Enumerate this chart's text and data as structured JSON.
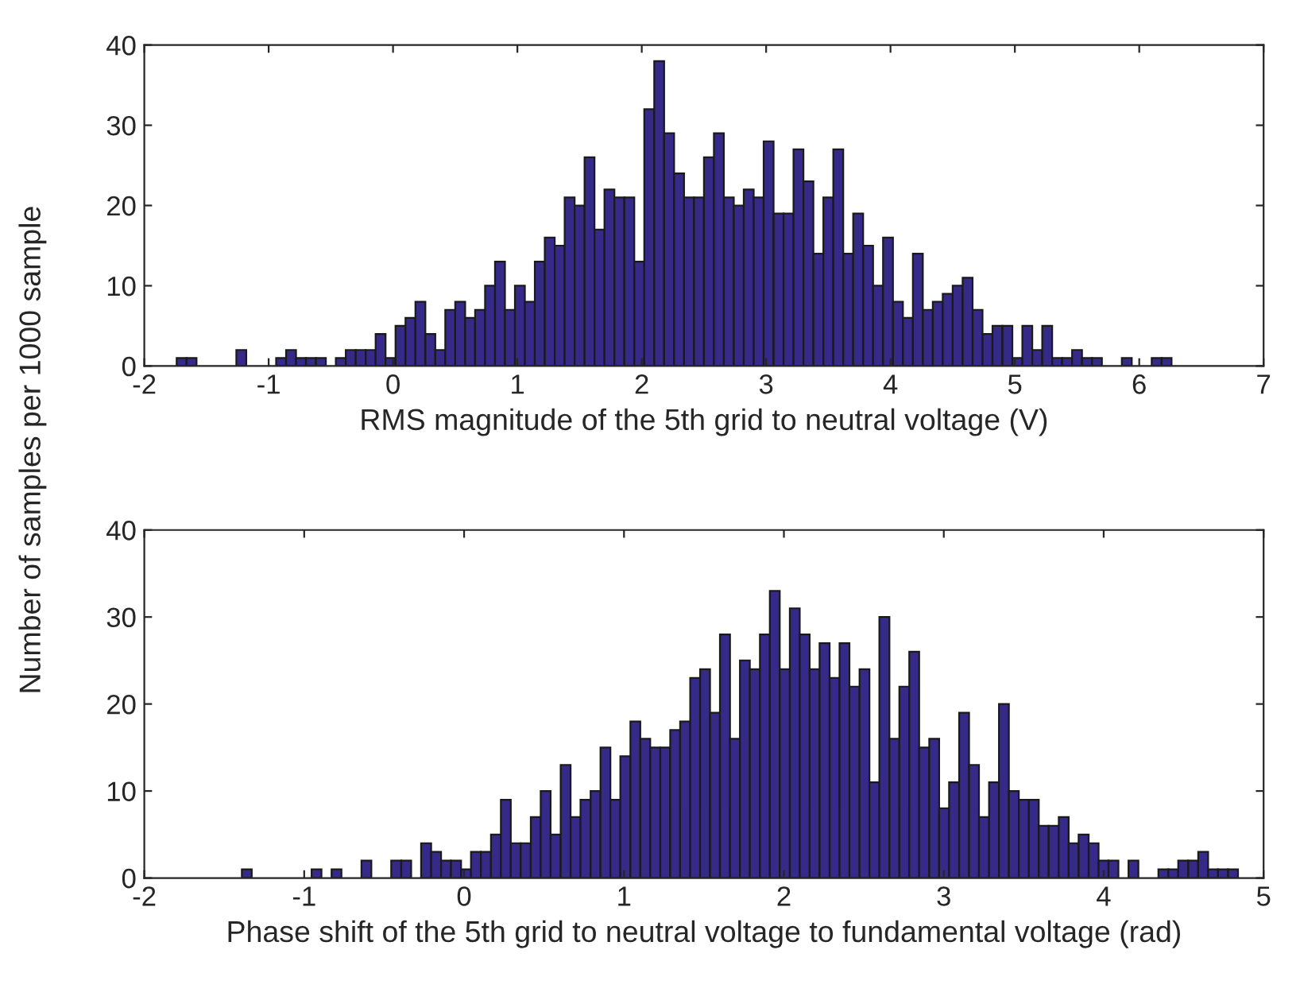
{
  "chart_data": [
    {
      "type": "histogram",
      "xlabel": "RMS magnitude of the 5th grid to neutral voltage (V)",
      "ylabel": "Number of samples per 1000 sample",
      "color": "#352a87",
      "bins": [
        -1.74,
        -1.66,
        -1.58,
        -1.5,
        -1.42,
        -1.34,
        -1.26,
        -1.18,
        -1.1,
        -1.02,
        -0.94,
        -0.86,
        -0.78,
        -0.7,
        -0.62,
        -0.54,
        -0.46,
        -0.38,
        -0.3,
        -0.22,
        -0.14,
        -0.06,
        0.02,
        0.1,
        0.18,
        0.26,
        0.34,
        0.42,
        0.5,
        0.58,
        0.66,
        0.74,
        0.82,
        0.9,
        0.98,
        1.06,
        1.14,
        1.22,
        1.3,
        1.38,
        1.46,
        1.54,
        1.62,
        1.7,
        1.78,
        1.86,
        1.94,
        2.02,
        2.1,
        2.18,
        2.26,
        2.34,
        2.42,
        2.5,
        2.58,
        2.66,
        2.74,
        2.82,
        2.9,
        2.98,
        3.06,
        3.14,
        3.22,
        3.3,
        3.38,
        3.46,
        3.54,
        3.62,
        3.7,
        3.78,
        3.86,
        3.94,
        4.02,
        4.1,
        4.18,
        4.26,
        4.34,
        4.42,
        4.5,
        4.58,
        4.66,
        4.74,
        4.82,
        4.9,
        4.98,
        5.06,
        5.14,
        5.22,
        5.3,
        5.38,
        5.46,
        5.54,
        5.62,
        5.7,
        5.78,
        5.86,
        5.94,
        6.02,
        6.1,
        6.18,
        6.26
      ],
      "values": [
        1,
        1,
        0,
        0,
        0,
        0,
        2,
        0,
        0,
        0,
        1,
        2,
        1,
        1,
        1,
        0,
        1,
        2,
        2,
        2,
        4,
        1,
        5,
        6,
        8,
        4,
        2,
        7,
        8,
        6,
        7,
        10,
        13,
        7,
        10,
        8,
        13,
        16,
        15,
        21,
        20,
        26,
        17,
        22,
        21,
        21,
        13,
        32,
        38,
        29,
        24,
        21,
        21,
        26,
        29,
        21,
        20,
        22,
        21,
        28,
        19,
        19,
        27,
        23,
        14,
        21,
        27,
        14,
        19,
        15,
        10,
        16,
        8,
        6,
        14,
        7,
        8,
        9,
        10,
        11,
        7,
        4,
        5,
        5,
        1,
        5,
        2,
        5,
        1,
        1,
        2,
        1,
        1,
        0,
        0,
        1,
        0,
        0,
        1,
        1
      ],
      "xlim": [
        -2,
        7
      ],
      "ylim": [
        0,
        40
      ],
      "xticks": [
        -2,
        -1,
        0,
        1,
        2,
        3,
        4,
        5,
        6,
        7
      ],
      "yticks": [
        0,
        10,
        20,
        30,
        40
      ]
    },
    {
      "type": "histogram",
      "xlabel": "Phase shift of the 5th grid to neutral voltage to fundamental voltage (rad)",
      "color": "#352a87",
      "bins": [
        -1.39,
        -1.328,
        -1.265,
        -1.203,
        -1.141,
        -1.079,
        -1.016,
        -0.954,
        -0.892,
        -0.829,
        -0.767,
        -0.705,
        -0.642,
        -0.58,
        -0.518,
        -0.456,
        -0.393,
        -0.331,
        -0.269,
        -0.206,
        -0.144,
        -0.082,
        -0.019,
        0.043,
        0.105,
        0.168,
        0.23,
        0.292,
        0.354,
        0.417,
        0.479,
        0.541,
        0.604,
        0.666,
        0.728,
        0.791,
        0.853,
        0.915,
        0.977,
        1.04,
        1.102,
        1.164,
        1.227,
        1.289,
        1.351,
        1.414,
        1.476,
        1.538,
        1.6,
        1.663,
        1.725,
        1.787,
        1.85,
        1.912,
        1.974,
        2.037,
        2.099,
        2.161,
        2.223,
        2.286,
        2.348,
        2.41,
        2.473,
        2.535,
        2.597,
        2.66,
        2.722,
        2.784,
        2.846,
        2.909,
        2.971,
        3.033,
        3.096,
        3.158,
        3.22,
        3.283,
        3.345,
        3.407,
        3.469,
        3.532,
        3.594,
        3.656,
        3.719,
        3.781,
        3.843,
        3.906,
        3.968,
        4.03,
        4.092,
        4.155,
        4.217,
        4.279,
        4.342,
        4.404,
        4.466,
        4.529,
        4.591,
        4.653,
        4.715,
        4.778,
        4.84
      ],
      "values": [
        1,
        0,
        0,
        0,
        0,
        0,
        0,
        1,
        0,
        1,
        0,
        0,
        2,
        0,
        0,
        2,
        2,
        0,
        4,
        3,
        2,
        2,
        1,
        3,
        3,
        5,
        9,
        4,
        4,
        7,
        10,
        5,
        13,
        7,
        9,
        10,
        15,
        9,
        14,
        18,
        16,
        15,
        15,
        17,
        18,
        23,
        24,
        19,
        28,
        16,
        25,
        24,
        28,
        33,
        24,
        31,
        28,
        24,
        27,
        23,
        27,
        22,
        24,
        11,
        30,
        16,
        22,
        26,
        15,
        16,
        8,
        11,
        19,
        13,
        7,
        11,
        20,
        10,
        9,
        9,
        6,
        6,
        7,
        4,
        5,
        4,
        2,
        2,
        0,
        2,
        0,
        0,
        1,
        1,
        2,
        2,
        3,
        1,
        1,
        1
      ],
      "xlim": [
        -2,
        5
      ],
      "ylim": [
        0,
        40
      ],
      "xticks": [
        -2,
        -1,
        0,
        1,
        2,
        3,
        4,
        5
      ],
      "yticks": [
        0,
        10,
        20,
        30,
        40
      ]
    }
  ]
}
